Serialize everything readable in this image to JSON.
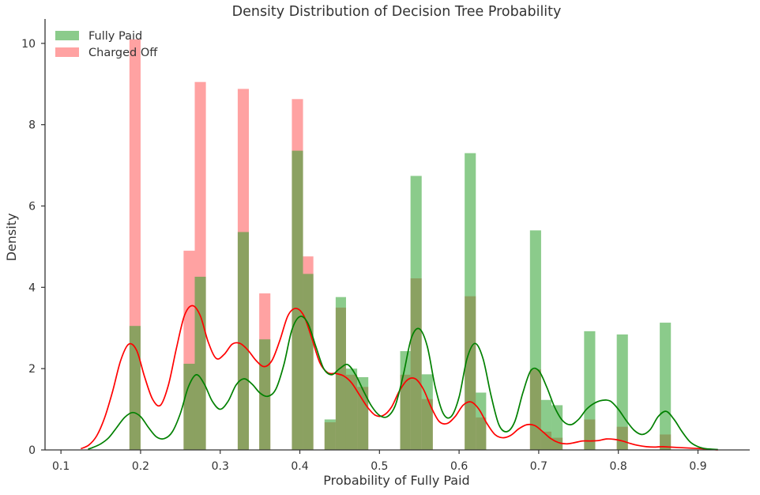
{
  "chart_data": {
    "type": "bar",
    "title": "Density Distribution of Decision Tree Probability",
    "xlabel": "Probability of Fully Paid",
    "ylabel": "Density",
    "xlim": [
      0.08,
      0.965
    ],
    "ylim": [
      0,
      10.6
    ],
    "xticks": [
      0.1,
      0.2,
      0.3,
      0.4,
      0.5,
      0.6,
      0.7,
      0.8,
      0.9
    ],
    "xtick_labels": [
      "0.1",
      "0.2",
      "0.3",
      "0.4",
      "0.5",
      "0.6",
      "0.7",
      "0.8",
      "0.9"
    ],
    "yticks": [
      0,
      2,
      4,
      6,
      8,
      10
    ],
    "ytick_labels": [
      "0",
      "2",
      "4",
      "6",
      "8",
      "10"
    ],
    "grid": false,
    "legend_position": "top-left",
    "bin_edges": [
      0.186,
      0.2,
      0.254,
      0.268,
      0.282,
      0.322,
      0.336,
      0.349,
      0.363,
      0.39,
      0.404,
      0.417,
      0.431,
      0.445,
      0.458,
      0.472,
      0.486,
      0.526,
      0.539,
      0.553,
      0.567,
      0.607,
      0.621,
      0.634,
      0.689,
      0.703,
      0.716,
      0.73,
      0.757,
      0.771,
      0.798,
      0.812,
      0.852,
      0.866
    ],
    "series": [
      {
        "name": "Fully Paid",
        "color": "#008000",
        "hist_color": "#2ca02c",
        "bars": [
          {
            "x0": 0.186,
            "x1": 0.2,
            "value": 3.05
          },
          {
            "x0": 0.254,
            "x1": 0.268,
            "value": 2.12
          },
          {
            "x0": 0.268,
            "x1": 0.282,
            "value": 4.26
          },
          {
            "x0": 0.322,
            "x1": 0.336,
            "value": 5.36
          },
          {
            "x0": 0.349,
            "x1": 0.363,
            "value": 2.72
          },
          {
            "x0": 0.39,
            "x1": 0.404,
            "value": 7.36
          },
          {
            "x0": 0.404,
            "x1": 0.417,
            "value": 4.33
          },
          {
            "x0": 0.431,
            "x1": 0.445,
            "value": 0.75
          },
          {
            "x0": 0.445,
            "x1": 0.458,
            "value": 3.76
          },
          {
            "x0": 0.458,
            "x1": 0.472,
            "value": 2.0
          },
          {
            "x0": 0.472,
            "x1": 0.486,
            "value": 1.79
          },
          {
            "x0": 0.526,
            "x1": 0.539,
            "value": 2.43
          },
          {
            "x0": 0.539,
            "x1": 0.553,
            "value": 6.74
          },
          {
            "x0": 0.553,
            "x1": 0.567,
            "value": 1.86
          },
          {
            "x0": 0.607,
            "x1": 0.621,
            "value": 7.3
          },
          {
            "x0": 0.621,
            "x1": 0.634,
            "value": 1.41
          },
          {
            "x0": 0.689,
            "x1": 0.703,
            "value": 5.4
          },
          {
            "x0": 0.703,
            "x1": 0.716,
            "value": 1.23
          },
          {
            "x0": 0.716,
            "x1": 0.73,
            "value": 1.1
          },
          {
            "x0": 0.757,
            "x1": 0.771,
            "value": 2.92
          },
          {
            "x0": 0.798,
            "x1": 0.812,
            "value": 2.84
          },
          {
            "x0": 0.852,
            "x1": 0.866,
            "value": 3.13
          }
        ],
        "kde": {
          "x": [
            0.134,
            0.14,
            0.15,
            0.16,
            0.17,
            0.18,
            0.19,
            0.2,
            0.21,
            0.22,
            0.23,
            0.24,
            0.25,
            0.26,
            0.27,
            0.28,
            0.29,
            0.3,
            0.31,
            0.32,
            0.33,
            0.34,
            0.35,
            0.36,
            0.37,
            0.38,
            0.39,
            0.4,
            0.41,
            0.42,
            0.43,
            0.44,
            0.45,
            0.46,
            0.47,
            0.48,
            0.49,
            0.5,
            0.51,
            0.52,
            0.53,
            0.54,
            0.55,
            0.56,
            0.57,
            0.58,
            0.59,
            0.6,
            0.61,
            0.62,
            0.63,
            0.64,
            0.65,
            0.66,
            0.67,
            0.68,
            0.69,
            0.7,
            0.71,
            0.72,
            0.73,
            0.74,
            0.75,
            0.76,
            0.77,
            0.78,
            0.79,
            0.8,
            0.81,
            0.82,
            0.83,
            0.84,
            0.85,
            0.86,
            0.87,
            0.88,
            0.89,
            0.9,
            0.91,
            0.925
          ],
          "y": [
            0.02,
            0.06,
            0.15,
            0.3,
            0.55,
            0.8,
            0.92,
            0.82,
            0.55,
            0.32,
            0.28,
            0.45,
            0.9,
            1.55,
            1.85,
            1.62,
            1.2,
            1.0,
            1.2,
            1.6,
            1.75,
            1.62,
            1.4,
            1.32,
            1.5,
            2.1,
            2.95,
            3.28,
            3.12,
            2.55,
            2.0,
            1.85,
            2.0,
            2.1,
            1.85,
            1.45,
            1.08,
            0.85,
            0.82,
            1.1,
            1.85,
            2.75,
            2.98,
            2.55,
            1.55,
            0.9,
            0.82,
            1.3,
            2.25,
            2.62,
            2.25,
            1.35,
            0.62,
            0.45,
            0.7,
            1.4,
            1.95,
            1.95,
            1.55,
            1.05,
            0.72,
            0.62,
            0.75,
            1.0,
            1.15,
            1.22,
            1.2,
            1.0,
            0.72,
            0.48,
            0.38,
            0.5,
            0.82,
            0.95,
            0.75,
            0.45,
            0.2,
            0.08,
            0.03,
            0.01
          ]
        }
      },
      {
        "name": "Charged Off",
        "color": "#ff0000",
        "hist_color": "#ff5555",
        "bars": [
          {
            "x0": 0.186,
            "x1": 0.2,
            "value": 10.1
          },
          {
            "x0": 0.254,
            "x1": 0.268,
            "value": 4.9
          },
          {
            "x0": 0.268,
            "x1": 0.282,
            "value": 9.05
          },
          {
            "x0": 0.322,
            "x1": 0.336,
            "value": 8.88
          },
          {
            "x0": 0.349,
            "x1": 0.363,
            "value": 3.85
          },
          {
            "x0": 0.39,
            "x1": 0.404,
            "value": 8.63
          },
          {
            "x0": 0.404,
            "x1": 0.417,
            "value": 4.76
          },
          {
            "x0": 0.431,
            "x1": 0.445,
            "value": 0.68
          },
          {
            "x0": 0.445,
            "x1": 0.458,
            "value": 3.5
          },
          {
            "x0": 0.458,
            "x1": 0.472,
            "value": 1.85
          },
          {
            "x0": 0.472,
            "x1": 0.486,
            "value": 1.55
          },
          {
            "x0": 0.526,
            "x1": 0.539,
            "value": 1.85
          },
          {
            "x0": 0.539,
            "x1": 0.553,
            "value": 4.22
          },
          {
            "x0": 0.553,
            "x1": 0.567,
            "value": 1.25
          },
          {
            "x0": 0.607,
            "x1": 0.621,
            "value": 3.78
          },
          {
            "x0": 0.621,
            "x1": 0.634,
            "value": 0.8
          },
          {
            "x0": 0.689,
            "x1": 0.703,
            "value": 1.98
          },
          {
            "x0": 0.703,
            "x1": 0.716,
            "value": 0.45
          },
          {
            "x0": 0.716,
            "x1": 0.73,
            "value": 0.3
          },
          {
            "x0": 0.757,
            "x1": 0.771,
            "value": 0.75
          },
          {
            "x0": 0.798,
            "x1": 0.812,
            "value": 0.57
          },
          {
            "x0": 0.852,
            "x1": 0.866,
            "value": 0.38
          }
        ],
        "kde": {
          "x": [
            0.125,
            0.135,
            0.145,
            0.155,
            0.165,
            0.175,
            0.185,
            0.195,
            0.205,
            0.215,
            0.225,
            0.235,
            0.245,
            0.255,
            0.265,
            0.275,
            0.285,
            0.295,
            0.305,
            0.315,
            0.325,
            0.335,
            0.345,
            0.355,
            0.365,
            0.375,
            0.385,
            0.395,
            0.405,
            0.415,
            0.425,
            0.435,
            0.445,
            0.455,
            0.465,
            0.475,
            0.485,
            0.495,
            0.505,
            0.515,
            0.525,
            0.535,
            0.545,
            0.555,
            0.565,
            0.575,
            0.585,
            0.595,
            0.605,
            0.615,
            0.625,
            0.635,
            0.645,
            0.655,
            0.665,
            0.675,
            0.685,
            0.695,
            0.705,
            0.715,
            0.725,
            0.735,
            0.745,
            0.755,
            0.765,
            0.775,
            0.785,
            0.795,
            0.805,
            0.815,
            0.825,
            0.835,
            0.845,
            0.855,
            0.865,
            0.875,
            0.885,
            0.895,
            0.905,
            0.925
          ],
          "y": [
            0.03,
            0.12,
            0.35,
            0.8,
            1.45,
            2.2,
            2.6,
            2.45,
            1.8,
            1.25,
            1.1,
            1.6,
            2.5,
            3.3,
            3.55,
            3.3,
            2.65,
            2.25,
            2.35,
            2.6,
            2.62,
            2.45,
            2.2,
            2.05,
            2.2,
            2.7,
            3.3,
            3.48,
            3.3,
            2.75,
            2.15,
            1.9,
            1.88,
            1.82,
            1.65,
            1.35,
            1.05,
            0.85,
            0.85,
            1.05,
            1.45,
            1.72,
            1.75,
            1.5,
            1.05,
            0.7,
            0.65,
            0.82,
            1.1,
            1.18,
            1.0,
            0.65,
            0.38,
            0.3,
            0.36,
            0.52,
            0.62,
            0.6,
            0.45,
            0.28,
            0.18,
            0.15,
            0.18,
            0.22,
            0.22,
            0.23,
            0.27,
            0.26,
            0.22,
            0.16,
            0.11,
            0.08,
            0.07,
            0.08,
            0.07,
            0.06,
            0.05,
            0.04,
            0.03,
            0.0
          ]
        }
      }
    ]
  }
}
